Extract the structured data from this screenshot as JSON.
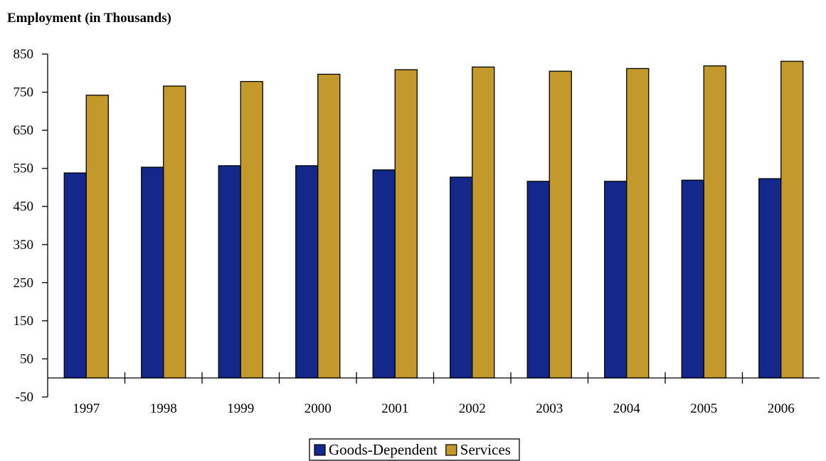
{
  "chart_data": {
    "type": "bar",
    "title": "Employment (in Thousands)",
    "xlabel": "",
    "ylabel": "",
    "categories": [
      "1997",
      "1998",
      "1999",
      "2000",
      "2001",
      "2002",
      "2003",
      "2004",
      "2005",
      "2006"
    ],
    "series": [
      {
        "name": "Goods-Dependent",
        "color": "#13288A",
        "values": [
          538,
          553,
          557,
          557,
          546,
          527,
          516,
          516,
          519,
          523
        ]
      },
      {
        "name": "Services",
        "color": "#C2992A",
        "values": [
          742,
          766,
          778,
          797,
          809,
          816,
          805,
          812,
          819,
          831
        ]
      }
    ],
    "ylim": [
      -50,
      850
    ],
    "yticks": [
      -50,
      50,
      150,
      250,
      350,
      450,
      550,
      650,
      750,
      850
    ],
    "grid": false,
    "legend_position": "bottom-center"
  }
}
